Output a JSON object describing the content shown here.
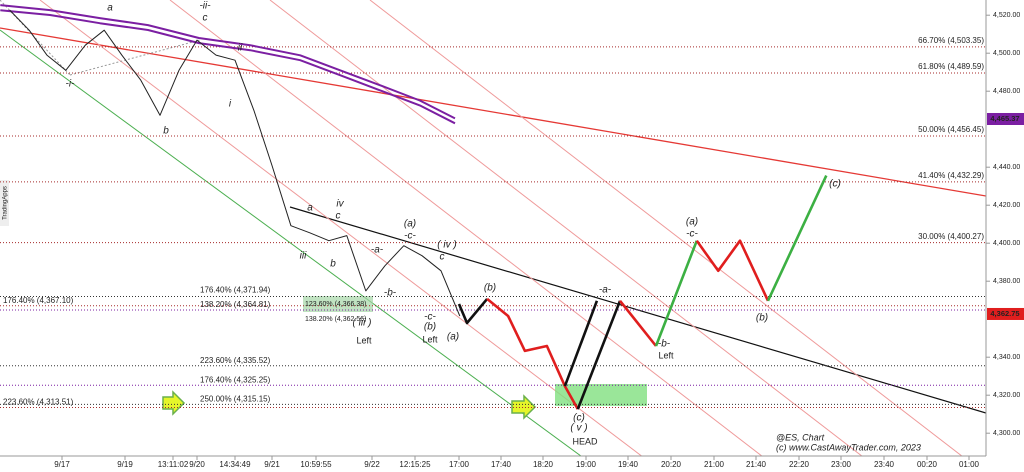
{
  "chart_data": {
    "type": "line",
    "side_label": "TradingApps",
    "categories": [
      "9/17",
      "9/19",
      "13:11:02",
      "9/20",
      "14:34:49",
      "9/21",
      "10:59:55",
      "9/22",
      "12:15:25",
      "17:00",
      "17:40",
      "18:20",
      "19:00",
      "19:40",
      "20:20",
      "21:00",
      "21:40",
      "22:20",
      "23:00",
      "23:40",
      "00:20",
      "01:00"
    ],
    "ylim": [
      4288,
      4528
    ],
    "yticks": [
      {
        "value": 4300,
        "label": "4,300.00"
      },
      {
        "value": 4320,
        "label": "4,320.00"
      },
      {
        "value": 4340,
        "label": "4,340.00"
      },
      {
        "value": 4380,
        "label": "4,380.00"
      },
      {
        "value": 4400,
        "label": "4,400.00"
      },
      {
        "value": 4420,
        "label": "4,420.00"
      },
      {
        "value": 4440,
        "label": "4,440.00"
      },
      {
        "value": 4480,
        "label": "4,480.00"
      },
      {
        "value": 4500,
        "label": "4,500.00"
      },
      {
        "value": 4520,
        "label": "4,520.00"
      }
    ],
    "series": [
      {
        "color": "#7b1fa2",
        "x": [
          -0.98,
          -0.19,
          0.6,
          1.48,
          3.05,
          4.41,
          5.64,
          6.43,
          7.19,
          8.11,
          8.91
        ],
        "values": [
          4525.3,
          4522.7,
          4518.5,
          4514.8,
          4508,
          4504.2,
          4498.9,
          4491,
          4483.1,
          4475.1,
          4465.7
        ]
      },
      {
        "color": "#7b1fa2",
        "x": [
          -0.98,
          -0.19,
          0.6,
          1.48,
          3.05,
          4.41,
          5.64,
          6.43,
          7.19,
          8.11,
          8.91
        ],
        "values": [
          4522.6,
          4520.1,
          4515.8,
          4512.2,
          4505.3,
          4501.6,
          4496.3,
          4488.4,
          4480.4,
          4472.5,
          4463.1
        ]
      },
      {
        "color": "#222222",
        "x": [
          -0.83,
          -0.52,
          -0.24,
          0.06,
          0.37,
          0.67,
          0.95,
          1.33,
          1.73,
          2.25,
          3,
          3.5,
          4,
          4.51,
          5,
          5.43,
          5.86,
          6.23,
          6.55,
          6.89,
          7.3,
          7.74,
          8.16,
          8.59,
          9.02
        ],
        "values": [
          4522.7,
          4512.1,
          4499,
          4491,
          4504.2,
          4512.1,
          4499,
          4485.8,
          4467.3,
          4491,
          4506.9,
          4499,
          4496.3,
          4469.9,
          4440.9,
          4409.2,
          4405.5,
          4401.3,
          4404,
          4374.9,
          4388.1,
          4398.7,
          4393.4,
          4385.5,
          4361.7
        ]
      },
      {
        "color": "#111111",
        "x": [
          9,
          9.19,
          9.67
        ],
        "values": [
          4368,
          4358,
          4370.7
        ]
      },
      {
        "color": "#e01e1e",
        "x": [
          9.67,
          10.17,
          10.57,
          11.09,
          11.51,
          11.81
        ],
        "values": [
          4370.7,
          4361.7,
          4343.3,
          4345.9,
          4324.8,
          4312.7
        ]
      },
      {
        "color": "#111111",
        "x": [
          11.51,
          12.26
        ],
        "values": [
          4324.8,
          4369.7
        ]
      },
      {
        "color": "#111111",
        "x": [
          11.81,
          12.81
        ],
        "values": [
          4312.7,
          4369.7
        ]
      },
      {
        "color": "#e01e1e",
        "x": [
          12.81,
          13.65
        ],
        "values": [
          4369.7,
          4345.9
        ]
      },
      {
        "color": "#3cb043",
        "x": [
          13.65,
          14.6
        ],
        "values": [
          4345.9,
          4401.3
        ]
      },
      {
        "color": "#e01e1e",
        "x": [
          14.6,
          15.1,
          15.62,
          16.28
        ],
        "values": [
          4401.3,
          4385.5,
          4401.3,
          4369.7
        ]
      },
      {
        "color": "#3cb043",
        "x": [
          16.28,
          17.65
        ],
        "values": [
          4369.7,
          4435.6
        ]
      }
    ],
    "levels": [
      {
        "label": "66.70% (4,503.35)",
        "value": 4503.35,
        "color": "#a52a2a"
      },
      {
        "label": "61.80% (4,489.59)",
        "value": 4489.59,
        "color": "#a52a2a"
      },
      {
        "label": "50.00% (4,456.45)",
        "value": 4456.45,
        "color": "#a52a2a"
      },
      {
        "label": "41.40% (4,432.29)",
        "value": 4432.29,
        "color": "#a52a2a"
      },
      {
        "label": "30.00% (4,400.27)",
        "value": 4400.27,
        "color": "#a52a2a"
      },
      {
        "label": "176.40% (4,367.10)",
        "value": 4367.1,
        "color": "#a52a2a"
      },
      {
        "label": "223.60% (4,313.51)",
        "value": 4313.51,
        "color": "#a52a2a"
      },
      {
        "label": "176.40% (4,371.94)",
        "value": 4371.94,
        "color": "#333333"
      },
      {
        "label": "138.20% (4,364.81)",
        "value": 4364.81,
        "color": "#7b1fa2"
      },
      {
        "label": "223.60% (4,335.52)",
        "value": 4335.52,
        "color": "#333333"
      },
      {
        "label": "176.40% (4,325.25)",
        "value": 4325.25,
        "color": "#7b1fa2"
      },
      {
        "label": "250.00% (4,315.15)",
        "value": 4315.15,
        "color": "#333333"
      },
      {
        "label": "123.60% (4,366.38)",
        "value": 4366.38,
        "color": "#2e7d32"
      },
      {
        "label": "138.20% (4,362.56)",
        "value": 4362.56,
        "color": "#2e7d32"
      }
    ],
    "price_tags": [
      {
        "value": 4465.37,
        "label": "4,465.37",
        "color": "#7b1fa2"
      },
      {
        "value": 4362.75,
        "label": "4,362.75",
        "color": "#e01e1e"
      }
    ],
    "annotations": [
      {
        "text": "a",
        "color": "#e01e1e"
      },
      {
        "text": "-ii-",
        "color": "#e01e1e"
      },
      {
        "text": "c",
        "color": "#e01e1e"
      },
      {
        "text": "ii",
        "color": "#e01e1e"
      },
      {
        "text": "-i-",
        "color": "#e01e1e"
      },
      {
        "text": "b",
        "color": "#e01e1e"
      },
      {
        "text": "i",
        "color": "#e01e1e"
      },
      {
        "text": "iii",
        "color": "#e01e1e"
      },
      {
        "text": "iv",
        "color": "#e01e1e"
      },
      {
        "text": "c",
        "color": "#e01e1e"
      },
      {
        "text": "a",
        "color": "#e01e1e"
      },
      {
        "text": "b",
        "color": "#e01e1e"
      },
      {
        "text": "-a-",
        "color": "#e01e1e"
      },
      {
        "text": "-b-",
        "color": "#e01e1e"
      },
      {
        "text": "(a)",
        "color": "#e01e1e"
      },
      {
        "text": "-c-",
        "color": "#e01e1e"
      },
      {
        "text": "( iv )",
        "color": "#e01e1e"
      },
      {
        "text": "c",
        "color": "#e01e1e"
      },
      {
        "text": "( iii )",
        "color": "#e01e1e"
      },
      {
        "text": "-c-",
        "color": "#e01e1e"
      },
      {
        "text": "(b)",
        "color": "#e01e1e"
      },
      {
        "text": "(a)",
        "color": "#e01e1e"
      },
      {
        "text": "Left",
        "color": "#111111"
      },
      {
        "text": "Left",
        "color": "#111111"
      },
      {
        "text": "(b)",
        "color": "#e01e1e"
      },
      {
        "text": "(c)",
        "color": "#e01e1e"
      },
      {
        "text": "( v )",
        "color": "#e01e1e"
      },
      {
        "text": "HEAD",
        "color": "#111111"
      },
      {
        "text": "-a-",
        "color": "#111111"
      },
      {
        "text": "-b-",
        "color": "#111111"
      },
      {
        "text": "Left",
        "color": "#111111"
      },
      {
        "text": "(a)",
        "color": "#111111"
      },
      {
        "text": "-c-",
        "color": "#111111"
      },
      {
        "text": "(b)",
        "color": "#111111"
      },
      {
        "text": "(c)",
        "color": "#111111"
      }
    ],
    "watermark": [
      "@ES, Chart",
      "(c) www.CastAwayTrader.com, 2023"
    ]
  }
}
